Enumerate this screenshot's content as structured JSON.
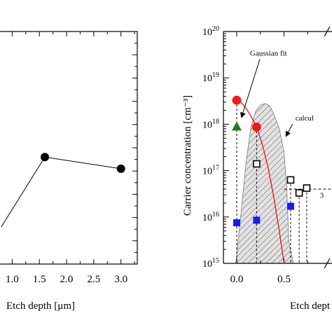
{
  "chart_data": [
    {
      "type": "line",
      "title": "",
      "xlabel": "Etch depth [μm]",
      "ylabel": "",
      "xlim": [
        0.75,
        3.3
      ],
      "ylim": [
        0,
        10
      ],
      "x_tick_labels": [
        "1.0",
        "1.5",
        "2.0",
        "2.5",
        "3.0"
      ],
      "x_tick_values": [
        1.0,
        1.5,
        2.0,
        2.5,
        3.0
      ],
      "series": [
        {
          "x": [
            0.8,
            1.6,
            3.0
          ],
          "values": [
            1.6,
            4.6,
            4.1
          ],
          "marker": "filled-circle",
          "color": "#000000"
        }
      ],
      "grid": false
    },
    {
      "type": "scatter",
      "title": "",
      "xlabel": "Etch dept",
      "ylabel": "Carrier concentration [cm⁻³]",
      "xscale": "linear",
      "yscale": "log",
      "xlim": [
        -0.1,
        0.9
      ],
      "ylim": [
        1000000000000000.0,
        1e+20
      ],
      "x_tick_labels": [
        "0.0",
        "0.5"
      ],
      "x_tick_values": [
        0.0,
        0.5
      ],
      "y_tick_labels": [
        {
          "base": "10",
          "exp": "15",
          "value": 1000000000000000.0
        },
        {
          "base": "10",
          "exp": "16",
          "value": 1e+16
        },
        {
          "base": "10",
          "exp": "17",
          "value": 1e+17
        },
        {
          "base": "10",
          "exp": "18",
          "value": 1e+18
        },
        {
          "base": "10",
          "exp": "19",
          "value": 1e+19
        },
        {
          "base": "10",
          "exp": "20",
          "value": 1e+20
        }
      ],
      "annotations": [
        {
          "text": "Gaussian fit",
          "x": 0.14,
          "y": 3e+19,
          "arrow_to": [
            0.05,
            1.4e+18
          ]
        },
        {
          "text": "calcul",
          "x": 0.62,
          "y": 1.2e+18,
          "arrow_to": [
            0.52,
            5.5e+17
          ]
        },
        {
          "text": "3",
          "x": 0.88,
          "y": 2.6e+16
        }
      ],
      "series": [
        {
          "x": [
            0.0,
            0.21
          ],
          "values": [
            3.3e+18,
            8.7e+17
          ],
          "marker": "circle",
          "color": "#ee1c1c"
        },
        {
          "x": [
            0.0
          ],
          "values": [
            9e+17
          ],
          "marker": "triangle",
          "color": "#207a20"
        },
        {
          "x": [
            0.21,
            0.57,
            0.66,
            0.74
          ],
          "values": [
            1.4e+17,
            6.3e+16,
            3.3e+16,
            4.2e+16
          ],
          "marker": "open-square",
          "color": "#000000"
        },
        {
          "x": [
            0.0,
            0.21,
            0.57
          ],
          "values": [
            7500000000000000.0,
            8500000000000000.0,
            1.7e+16
          ],
          "marker": "square",
          "color": "#1a1aee"
        }
      ],
      "fit_curve": {
        "color": "#ee1c1c",
        "x": [
          0.0,
          0.05,
          0.1,
          0.15,
          0.21,
          0.27,
          0.33,
          0.39,
          0.45,
          0.5
        ],
        "values": [
          3.3e+18,
          2.9e+18,
          2.2e+18,
          1.5e+18,
          8.7e+17,
          3.7e+17,
          1.2e+17,
          2.8e+16,
          5000000000000000.0,
          1000000000000000.0
        ]
      },
      "calc_region": {
        "x": [
          -0.01,
          0.05,
          0.1,
          0.15,
          0.2,
          0.25,
          0.3,
          0.35,
          0.4,
          0.45,
          0.5,
          0.53,
          0.55,
          0.6
        ],
        "values": [
          1000000000000000.0,
          1.5e+16,
          1.6e+17,
          8.5e+17,
          1.9e+18,
          2.6e+18,
          2.8e+18,
          2.5e+18,
          1.5e+18,
          8e+17,
          2.5e+17,
          4e+16,
          3000000000000000.0,
          1000000000000000.0
        ]
      },
      "reference_line": {
        "y": 4e+16,
        "x_from": 0.5,
        "style": "dashed"
      },
      "grid": false
    }
  ]
}
